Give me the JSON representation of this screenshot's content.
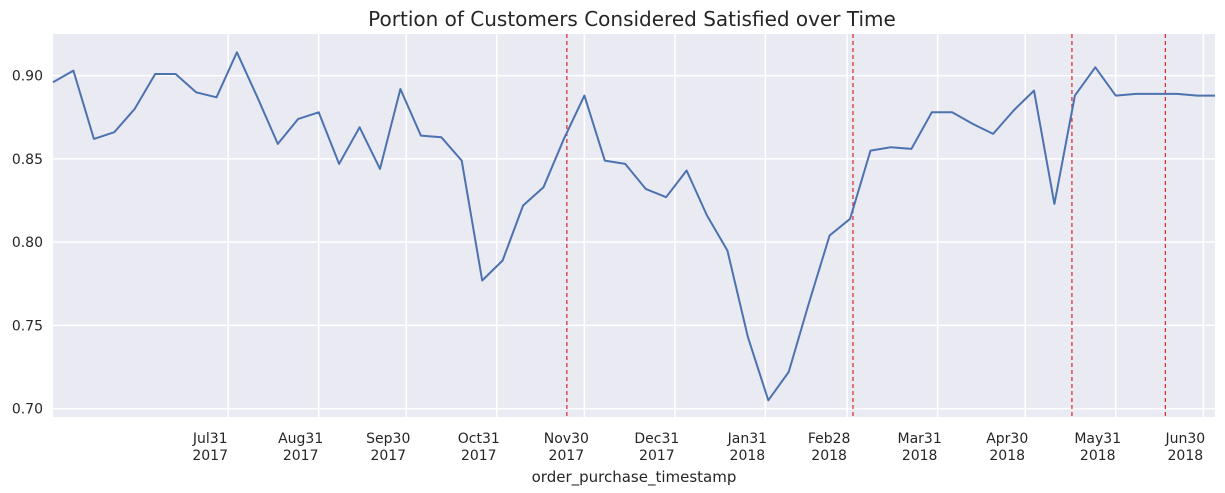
{
  "chart_data": {
    "type": "line",
    "title": "Portion of Customers Considered Satisfied over Time",
    "xlabel": "order_purchase_timestamp",
    "ylabel": "",
    "ylim": [
      0.695,
      0.925
    ],
    "xlim": [
      "2017-06-01",
      "2018-07-04"
    ],
    "grid": true,
    "y_ticks": [
      "0.70",
      "0.75",
      "0.80",
      "0.85",
      "0.90"
    ],
    "x_ticks": [
      {
        "date": "2017-07-31",
        "label1": "Jul31",
        "label2": "2017"
      },
      {
        "date": "2017-08-31",
        "label1": "Aug31",
        "label2": "2017"
      },
      {
        "date": "2017-09-30",
        "label1": "Sep30",
        "label2": "2017"
      },
      {
        "date": "2017-10-31",
        "label1": "Oct31",
        "label2": "2017"
      },
      {
        "date": "2017-11-30",
        "label1": "Nov30",
        "label2": "2017"
      },
      {
        "date": "2017-12-31",
        "label1": "Dec31",
        "label2": "2017"
      },
      {
        "date": "2018-01-31",
        "label1": "Jan31",
        "label2": "2018"
      },
      {
        "date": "2018-02-28",
        "label1": "Feb28",
        "label2": "2018"
      },
      {
        "date": "2018-03-31",
        "label1": "Mar31",
        "label2": "2018"
      },
      {
        "date": "2018-04-30",
        "label1": "Apr30",
        "label2": "2018"
      },
      {
        "date": "2018-05-31",
        "label1": "May31",
        "label2": "2018"
      },
      {
        "date": "2018-06-30",
        "label1": "Jun30",
        "label2": "2018"
      }
    ],
    "vlines": [
      "2017-11-24",
      "2018-03-02",
      "2018-05-16",
      "2018-06-17"
    ],
    "colors": {
      "line": "#4c72b0",
      "vline": "#d62728",
      "background": "#eaeaf2",
      "grid": "#ffffff"
    },
    "series": [
      {
        "x": [
          "2017-06-01",
          "2017-06-08",
          "2017-06-15",
          "2017-06-22",
          "2017-06-29",
          "2017-07-06",
          "2017-07-13",
          "2017-07-20",
          "2017-07-27",
          "2017-08-03",
          "2017-08-10",
          "2017-08-17",
          "2017-08-24",
          "2017-08-31",
          "2017-09-07",
          "2017-09-14",
          "2017-09-21",
          "2017-09-28",
          "2017-10-05",
          "2017-10-12",
          "2017-10-19",
          "2017-10-26",
          "2017-11-02",
          "2017-11-09",
          "2017-11-16",
          "2017-11-23",
          "2017-11-30",
          "2017-12-07",
          "2017-12-14",
          "2017-12-21",
          "2017-12-28",
          "2018-01-04",
          "2018-01-11",
          "2018-01-18",
          "2018-01-25",
          "2018-02-01",
          "2018-02-08",
          "2018-02-15",
          "2018-02-22",
          "2018-03-01",
          "2018-03-08",
          "2018-03-15",
          "2018-03-22",
          "2018-03-29",
          "2018-04-05",
          "2018-04-12",
          "2018-04-19",
          "2018-04-26",
          "2018-05-03",
          "2018-05-10",
          "2018-05-17",
          "2018-05-24",
          "2018-05-31",
          "2018-06-07",
          "2018-06-14",
          "2018-06-21",
          "2018-06-28",
          "2018-07-04"
        ],
        "values": [
          0.896,
          0.903,
          0.862,
          0.866,
          0.88,
          0.901,
          0.901,
          0.89,
          0.887,
          0.914,
          0.887,
          0.859,
          0.874,
          0.878,
          0.847,
          0.869,
          0.844,
          0.892,
          0.864,
          0.863,
          0.849,
          0.777,
          0.789,
          0.822,
          0.833,
          0.862,
          0.888,
          0.849,
          0.847,
          0.832,
          0.827,
          0.843,
          0.816,
          0.795,
          0.743,
          0.705,
          0.722,
          0.764,
          0.804,
          0.814,
          0.855,
          0.857,
          0.856,
          0.878,
          0.878,
          0.871,
          0.865,
          0.879,
          0.891,
          0.823,
          0.888,
          0.905,
          0.888,
          0.889,
          0.889,
          0.889,
          0.888,
          0.888
        ]
      }
    ]
  }
}
